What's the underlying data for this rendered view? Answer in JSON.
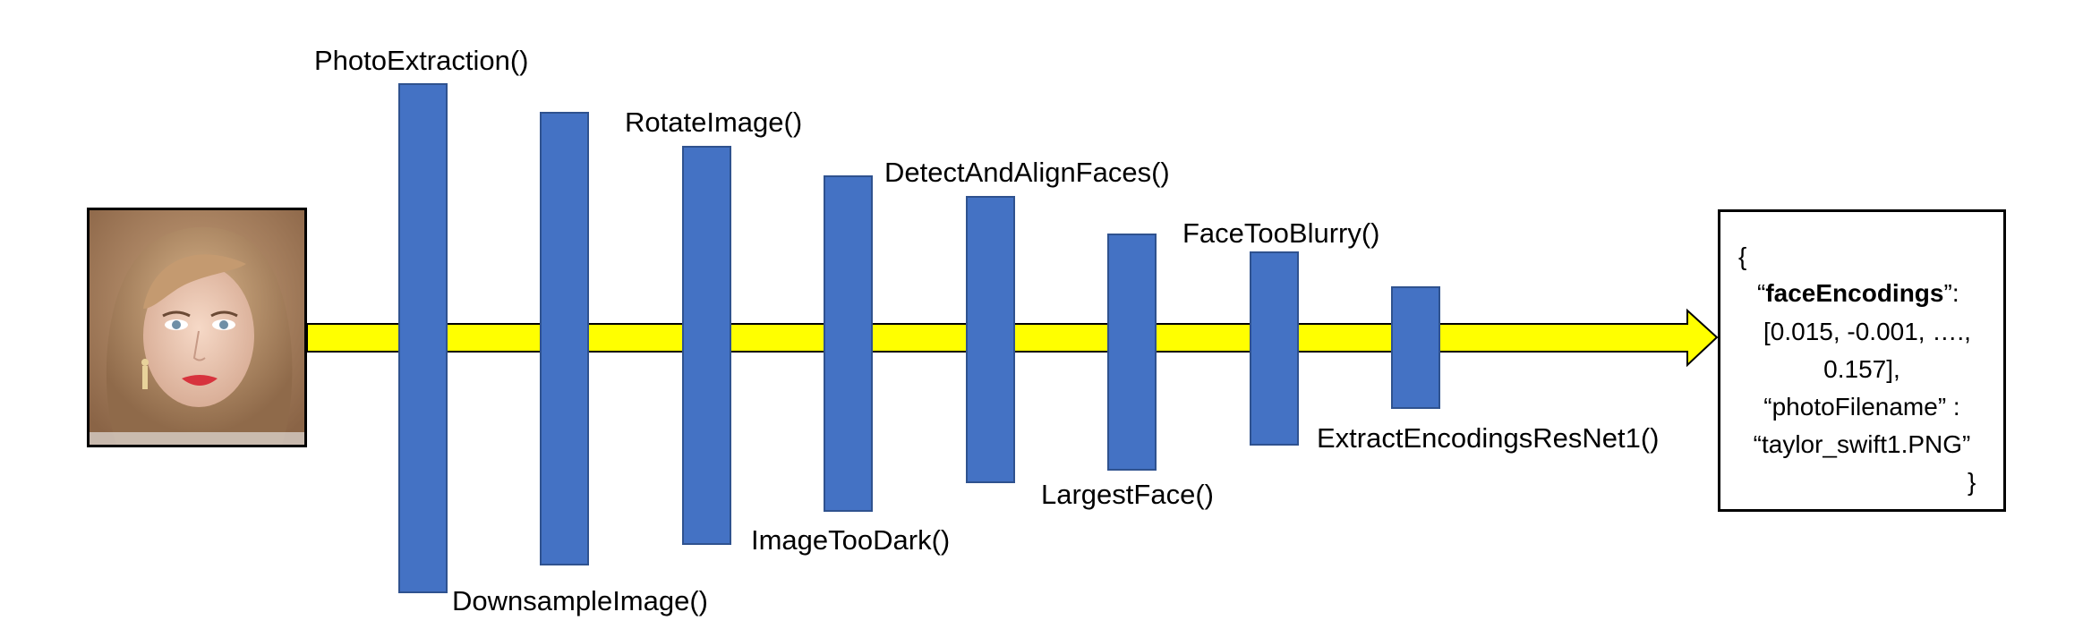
{
  "stages": [
    {
      "id": "photo-extraction",
      "label": "PhotoExtraction()"
    },
    {
      "id": "downsample-image",
      "label": "DownsampleImage()"
    },
    {
      "id": "rotate-image",
      "label": "RotateImage()"
    },
    {
      "id": "image-too-dark",
      "label": "ImageTooDark()"
    },
    {
      "id": "detect-and-align-faces",
      "label": "DetectAndAlignFaces()"
    },
    {
      "id": "largest-face",
      "label": "LargestFace()"
    },
    {
      "id": "face-too-blurry",
      "label": "FaceTooBlurry()"
    },
    {
      "id": "extract-encodings-resnet1",
      "label": "ExtractEncodingsResNet1()"
    }
  ],
  "output": {
    "open_brace": "{",
    "face_encodings_open_quote": "“",
    "face_encodings_key": "faceEncodings",
    "face_encodings_close_quote": "”:",
    "face_encodings_values_line1": "[0.015, -0.001, ….,",
    "face_encodings_values_line2": "0.157],",
    "photo_filename_key": "“photoFilename” :",
    "photo_filename_value": "“taylor_swift1.PNG”",
    "close_brace": "}"
  },
  "colors": {
    "stage_fill": "#4472c4",
    "stage_border": "#2f528f",
    "arrow_fill": "#ffff00",
    "arrow_border": "#000000"
  }
}
